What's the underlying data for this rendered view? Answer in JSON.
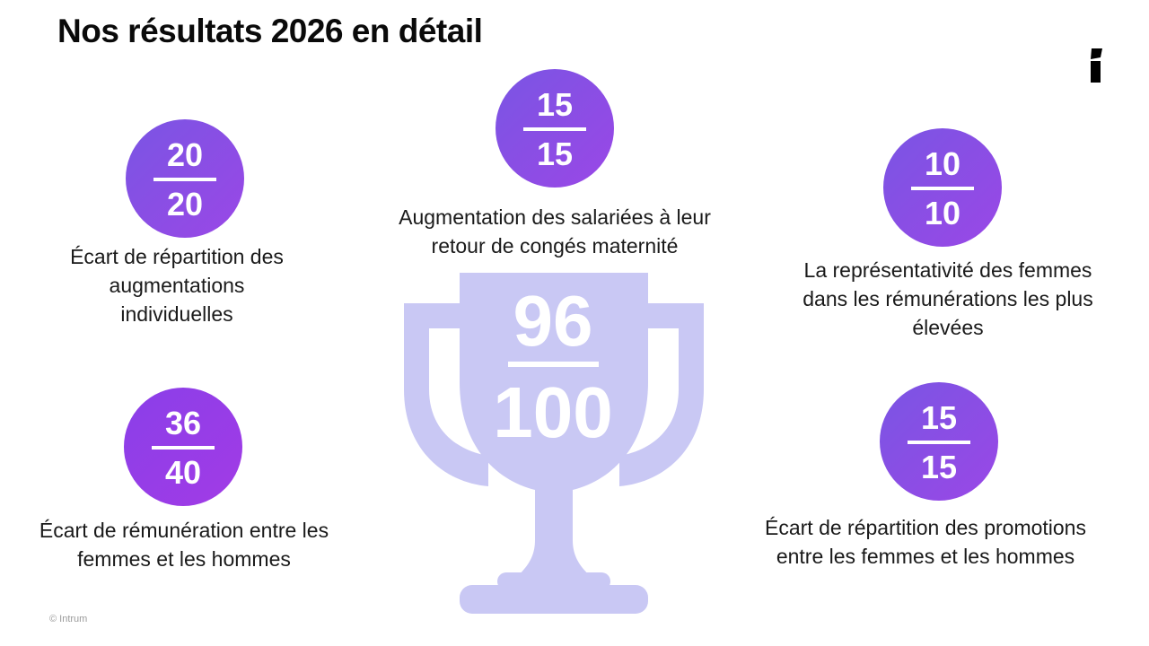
{
  "title": "Nos résultats 2026 en détail",
  "colors": {
    "badge_gradient_start": "#7b4fe0",
    "badge_gradient_end": "#9a46e6",
    "trophy": "#c9c8f4",
    "text": "#1a1a1a"
  },
  "trophy": {
    "numerator": "96",
    "denominator": "100",
    "icon": "trophy-icon"
  },
  "indicators": [
    {
      "id": "augmentations",
      "numerator": "20",
      "denominator": "20",
      "caption": "Écart de répartition des augmentations individuelles"
    },
    {
      "id": "maternite",
      "numerator": "15",
      "denominator": "15",
      "caption": "Augmentation des salariées à leur retour de congés maternité"
    },
    {
      "id": "representativite",
      "numerator": "10",
      "denominator": "10",
      "caption": "La représentativité des femmes dans les rémunérations les plus élevées"
    },
    {
      "id": "remuneration",
      "numerator": "36",
      "denominator": "40",
      "caption": "Écart de rémunération entre les femmes et les hommes"
    },
    {
      "id": "promotions",
      "numerator": "15",
      "denominator": "15",
      "caption": "Écart de répartition des promotions entre les femmes et les hommes"
    }
  ],
  "logo": "intrum-logo-icon",
  "copyright": "© Intrum"
}
